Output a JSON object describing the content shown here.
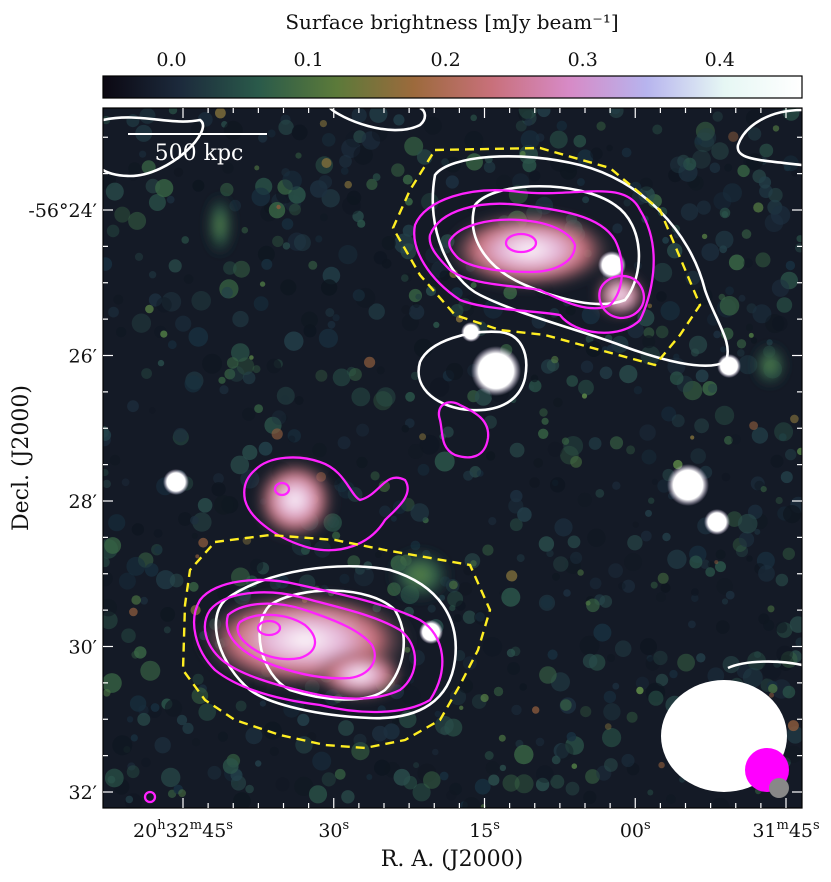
{
  "chart_data": {
    "type": "heatmap",
    "title": "",
    "colorbar": {
      "label": "Surface brightness [mJy beam⁻¹]",
      "ticks": [
        "0.0",
        "0.1",
        "0.2",
        "0.3",
        "0.4"
      ],
      "tick_values": [
        0.0,
        0.1,
        0.2,
        0.3,
        0.4
      ],
      "range": [
        -0.05,
        0.46
      ],
      "colormap": [
        "#0b0812",
        "#1c2a3c",
        "#2a5a4a",
        "#5b7a3a",
        "#9c6a3c",
        "#c8707a",
        "#d78ac6",
        "#b7b4ee",
        "#e6f7f4",
        "#ffffff"
      ]
    },
    "xlabel": "R. A. (J2000)",
    "ylabel": "Decl. (J2000)",
    "x_ticks": [
      {
        "h": "20",
        "m": "32",
        "s": "45"
      },
      {
        "s": "30"
      },
      {
        "s": "15"
      },
      {
        "s": "00"
      },
      {
        "h": "",
        "m": "31",
        "s": "45"
      }
    ],
    "x_tick_values_sec_from_20h32m45s": [
      0,
      15,
      30,
      45,
      60
    ],
    "y_ticks": [
      "-56°24′",
      "26′",
      "28′",
      "30′",
      "32′"
    ],
    "y_tick_values_arcmin_from_56d": [
      24,
      26,
      28,
      30,
      32
    ],
    "scalebar": {
      "label": "500 kpc"
    },
    "contours": [
      {
        "name": "white",
        "color": "#ffffff"
      },
      {
        "name": "magenta",
        "color": "#ff22ff"
      },
      {
        "name": "dashed-region",
        "color": "#ffee22",
        "style": "dashed"
      }
    ],
    "beams": [
      {
        "color": "#ffffff"
      },
      {
        "color": "#ff00ff"
      },
      {
        "color": "#888888"
      }
    ],
    "grid": false,
    "legend": "none"
  }
}
